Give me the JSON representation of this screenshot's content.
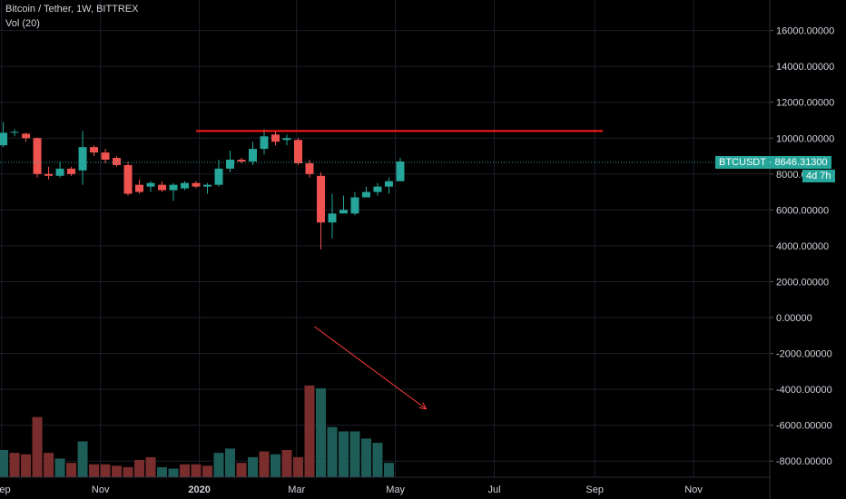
{
  "header": {
    "title": "Bitcoin / Tether, 1W, BITTREX",
    "volume_label": "Vol (20)"
  },
  "price_tag": {
    "symbol": "BTCUSDT",
    "value": "8646.31300",
    "countdown": "4d 7h"
  },
  "colors": {
    "background": "#000000",
    "grid": "#1c1f2a",
    "up": "#26a69a",
    "down": "#ef5350",
    "volume_up": "#1e5d57",
    "volume_down": "#7a2d2d",
    "resistance_line": "#ff1a1a",
    "trend_arrow": "#ff3b3b",
    "text": "#d1d4dc"
  },
  "chart_data": {
    "type": "candlestick",
    "title": "Bitcoin / Tether, 1W, BITTREX",
    "x_ticks": [
      {
        "label": "Sep",
        "date": "2019-09-01"
      },
      {
        "label": "Nov",
        "date": "2019-11-01"
      },
      {
        "label": "2020",
        "date": "2020-01-01",
        "bold": true
      },
      {
        "label": "Mar",
        "date": "2020-03-01"
      },
      {
        "label": "May",
        "date": "2020-05-01"
      },
      {
        "label": "Jul",
        "date": "2020-07-01"
      },
      {
        "label": "Sep",
        "date": "2020-09-01"
      },
      {
        "label": "Nov",
        "date": "2020-11-01"
      }
    ],
    "y_ticks": [
      "16000.00000",
      "14000.00000",
      "12000.00000",
      "10000.00000",
      "8000.00000",
      "6000.00000",
      "4000.00000",
      "2000.00000",
      "0.00000",
      "-2000.00000",
      "-4000.00000",
      "-6000.00000",
      "-8000.00000"
    ],
    "y_range": [
      -8900,
      17700
    ],
    "x_range": [
      "2019-08-31",
      "2020-12-18"
    ],
    "candles": [
      {
        "date": "2019-09-02",
        "open": 9600,
        "high": 10900,
        "low": 9500,
        "close": 10300,
        "volume": "up"
      },
      {
        "date": "2019-09-09",
        "open": 10300,
        "high": 10500,
        "low": 10100,
        "close": 10350,
        "volume": "down"
      },
      {
        "date": "2019-09-16",
        "open": 10250,
        "high": 10300,
        "low": 9800,
        "close": 10000,
        "volume": "down"
      },
      {
        "date": "2019-09-23",
        "open": 10000,
        "high": 10050,
        "low": 7800,
        "close": 8000,
        "volume": "down"
      },
      {
        "date": "2019-09-30",
        "open": 8000,
        "high": 8400,
        "low": 7700,
        "close": 7900,
        "volume": "down"
      },
      {
        "date": "2019-10-07",
        "open": 7900,
        "high": 8700,
        "low": 7800,
        "close": 8300,
        "volume": "up"
      },
      {
        "date": "2019-10-14",
        "open": 8300,
        "high": 8400,
        "low": 7900,
        "close": 8000,
        "volume": "down"
      },
      {
        "date": "2019-10-21",
        "open": 8200,
        "high": 10400,
        "low": 7400,
        "close": 9500,
        "volume": "up"
      },
      {
        "date": "2019-10-28",
        "open": 9500,
        "high": 9600,
        "low": 9000,
        "close": 9200,
        "volume": "down"
      },
      {
        "date": "2019-11-04",
        "open": 9200,
        "high": 9400,
        "low": 8600,
        "close": 8800,
        "volume": "down"
      },
      {
        "date": "2019-11-11",
        "open": 8900,
        "high": 9000,
        "low": 8400,
        "close": 8500,
        "volume": "down"
      },
      {
        "date": "2019-11-18",
        "open": 8500,
        "high": 8700,
        "low": 6800,
        "close": 6900,
        "volume": "down"
      },
      {
        "date": "2019-11-25",
        "open": 7400,
        "high": 7700,
        "low": 6900,
        "close": 7000,
        "volume": "down"
      },
      {
        "date": "2019-12-02",
        "open": 7300,
        "high": 7600,
        "low": 7000,
        "close": 7500,
        "volume": "up"
      },
      {
        "date": "2019-12-09",
        "open": 7400,
        "high": 7600,
        "low": 7000,
        "close": 7100,
        "volume": "down"
      },
      {
        "date": "2019-12-16",
        "open": 7100,
        "high": 7500,
        "low": 6500,
        "close": 7400,
        "volume": "up"
      },
      {
        "date": "2019-12-23",
        "open": 7200,
        "high": 7600,
        "low": 7100,
        "close": 7500,
        "volume": "up"
      },
      {
        "date": "2019-12-30",
        "open": 7500,
        "high": 7600,
        "low": 7200,
        "close": 7300,
        "volume": "down"
      },
      {
        "date": "2020-01-06",
        "open": 7300,
        "high": 7500,
        "low": 6900,
        "close": 7400,
        "volume": "up"
      },
      {
        "date": "2020-01-13",
        "open": 7400,
        "high": 8800,
        "low": 7300,
        "close": 8300,
        "volume": "up"
      },
      {
        "date": "2020-01-20",
        "open": 8300,
        "high": 9300,
        "low": 8100,
        "close": 8800,
        "volume": "up"
      },
      {
        "date": "2020-01-27",
        "open": 8800,
        "high": 8900,
        "low": 8600,
        "close": 8700,
        "volume": "down"
      },
      {
        "date": "2020-02-03",
        "open": 8700,
        "high": 9800,
        "low": 8500,
        "close": 9400,
        "volume": "up"
      },
      {
        "date": "2020-02-10",
        "open": 9400,
        "high": 10500,
        "low": 9100,
        "close": 10100,
        "volume": "up"
      },
      {
        "date": "2020-02-17",
        "open": 10200,
        "high": 10400,
        "low": 9600,
        "close": 9800,
        "volume": "down"
      },
      {
        "date": "2020-02-24",
        "open": 9900,
        "high": 10200,
        "low": 9600,
        "close": 10000,
        "volume": "up"
      },
      {
        "date": "2020-03-02",
        "open": 9900,
        "high": 10000,
        "low": 8500,
        "close": 8600,
        "volume": "down"
      },
      {
        "date": "2020-03-09",
        "open": 8600,
        "high": 8800,
        "low": 7800,
        "close": 8000,
        "volume": "down"
      },
      {
        "date": "2020-03-16",
        "open": 7900,
        "high": 8100,
        "low": 3800,
        "close": 5300,
        "volume": "down"
      },
      {
        "date": "2020-03-23",
        "open": 5300,
        "high": 6900,
        "low": 4400,
        "close": 5800,
        "volume": "up"
      },
      {
        "date": "2020-03-30",
        "open": 5800,
        "high": 6800,
        "low": 5800,
        "close": 6000,
        "volume": "up"
      },
      {
        "date": "2020-04-06",
        "open": 5800,
        "high": 7000,
        "low": 5700,
        "close": 6700,
        "volume": "up"
      },
      {
        "date": "2020-04-13",
        "open": 6700,
        "high": 7300,
        "low": 6700,
        "close": 7000,
        "volume": "up"
      },
      {
        "date": "2020-04-20",
        "open": 7000,
        "high": 7500,
        "low": 6800,
        "close": 7300,
        "volume": "up"
      },
      {
        "date": "2020-04-27",
        "open": 7300,
        "high": 7800,
        "low": 6900,
        "close": 7600,
        "volume": "up"
      },
      {
        "date": "2020-05-04",
        "open": 7600,
        "high": 8900,
        "low": 7600,
        "close": 8700,
        "volume": "up"
      }
    ],
    "volume_bars": [
      {
        "date": "2019-09-02",
        "value": 0.19,
        "dir": "up"
      },
      {
        "date": "2019-09-09",
        "value": 0.17,
        "dir": "down"
      },
      {
        "date": "2019-09-16",
        "value": 0.16,
        "dir": "down"
      },
      {
        "date": "2019-09-23",
        "value": 0.42,
        "dir": "down"
      },
      {
        "date": "2019-09-30",
        "value": 0.17,
        "dir": "down"
      },
      {
        "date": "2019-10-07",
        "value": 0.13,
        "dir": "up"
      },
      {
        "date": "2019-10-14",
        "value": 0.1,
        "dir": "down"
      },
      {
        "date": "2019-10-21",
        "value": 0.25,
        "dir": "up"
      },
      {
        "date": "2019-10-28",
        "value": 0.09,
        "dir": "down"
      },
      {
        "date": "2019-11-04",
        "value": 0.09,
        "dir": "down"
      },
      {
        "date": "2019-11-11",
        "value": 0.08,
        "dir": "down"
      },
      {
        "date": "2019-11-18",
        "value": 0.07,
        "dir": "down"
      },
      {
        "date": "2019-11-25",
        "value": 0.12,
        "dir": "down"
      },
      {
        "date": "2019-12-02",
        "value": 0.14,
        "dir": "down"
      },
      {
        "date": "2019-12-09",
        "value": 0.07,
        "dir": "up"
      },
      {
        "date": "2019-12-16",
        "value": 0.06,
        "dir": "up"
      },
      {
        "date": "2019-12-23",
        "value": 0.09,
        "dir": "down"
      },
      {
        "date": "2019-12-30",
        "value": 0.09,
        "dir": "down"
      },
      {
        "date": "2020-01-06",
        "value": 0.08,
        "dir": "down"
      },
      {
        "date": "2020-01-13",
        "value": 0.17,
        "dir": "up"
      },
      {
        "date": "2020-01-20",
        "value": 0.2,
        "dir": "up"
      },
      {
        "date": "2020-01-27",
        "value": 0.1,
        "dir": "down"
      },
      {
        "date": "2020-02-03",
        "value": 0.14,
        "dir": "up"
      },
      {
        "date": "2020-02-10",
        "value": 0.18,
        "dir": "down"
      },
      {
        "date": "2020-02-17",
        "value": 0.16,
        "dir": "up"
      },
      {
        "date": "2020-02-24",
        "value": 0.19,
        "dir": "down"
      },
      {
        "date": "2020-03-02",
        "value": 0.14,
        "dir": "down"
      },
      {
        "date": "2020-03-09",
        "value": 0.64,
        "dir": "down"
      },
      {
        "date": "2020-03-16",
        "value": 0.62,
        "dir": "up"
      },
      {
        "date": "2020-03-23",
        "value": 0.35,
        "dir": "up"
      },
      {
        "date": "2020-03-30",
        "value": 0.32,
        "dir": "up"
      },
      {
        "date": "2020-04-06",
        "value": 0.32,
        "dir": "up"
      },
      {
        "date": "2020-04-13",
        "value": 0.27,
        "dir": "up"
      },
      {
        "date": "2020-04-20",
        "value": 0.24,
        "dir": "up"
      },
      {
        "date": "2020-04-27",
        "value": 0.1,
        "dir": "up"
      }
    ],
    "resistance_line": {
      "price": 10400,
      "from_date": "2019-12-30",
      "to_date": "2020-09-06"
    },
    "trend_arrow": {
      "from_date": "2020-03-12",
      "from_price": -500,
      "to_date": "2020-05-20",
      "to_price": -5100
    },
    "last_price": 8646.313,
    "grid": true
  }
}
